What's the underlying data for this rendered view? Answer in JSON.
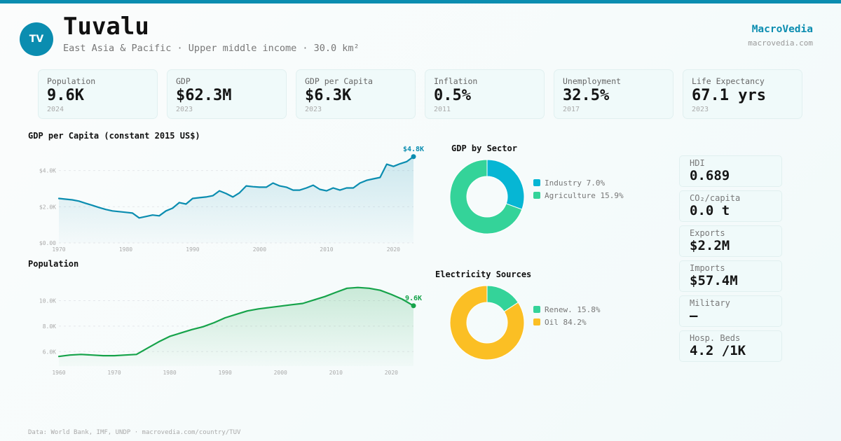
{
  "header": {
    "avatar_initials": "TV",
    "country": "Tuvalu",
    "subtitle": "East Asia & Pacific · Upper middle income · 30.0 km²",
    "brand": "MacroVedia",
    "brand_url": "macrovedia.com"
  },
  "colors": {
    "accent": "#0b8db0",
    "population_green": "#16a34a",
    "industry": "#06b6d4",
    "agriculture": "#34d399",
    "renewables": "#34d399",
    "oil": "#fbbf24"
  },
  "stats": [
    {
      "label": "Population",
      "value": "9.6K",
      "year": "2024"
    },
    {
      "label": "GDP",
      "value": "$62.3M",
      "year": "2023"
    },
    {
      "label": "GDP per Capita",
      "value": "$6.3K",
      "year": "2023"
    },
    {
      "label": "Inflation",
      "value": "0.5%",
      "year": "2011"
    },
    {
      "label": "Unemployment",
      "value": "32.5%",
      "year": "2017"
    },
    {
      "label": "Life Expectancy",
      "value": "67.1 yrs",
      "year": "2023"
    }
  ],
  "side_stats": [
    {
      "label": "HDI",
      "value": "0.689"
    },
    {
      "label": "CO₂/capita",
      "value": "0.0 t"
    },
    {
      "label": "Exports",
      "value": "$2.2M"
    },
    {
      "label": "Imports",
      "value": "$57.4M"
    },
    {
      "label": "Military",
      "value": "—"
    },
    {
      "label": "Hosp. Beds",
      "value": "4.2 /1K"
    }
  ],
  "footer": "Data: World Bank, IMF, UNDP · macrovedia.com/country/TUV",
  "chart_data": [
    {
      "type": "area",
      "title": "GDP per Capita (constant 2015 US$)",
      "xlabel": "",
      "ylabel": "",
      "ylim": [
        0,
        4800
      ],
      "yticks": [
        0,
        2000,
        4000
      ],
      "ytick_labels": [
        "$0.00",
        "$2.0K",
        "$4.0K"
      ],
      "xticks": [
        1970,
        1980,
        1990,
        2000,
        2010,
        2020
      ],
      "grid": true,
      "end_label": "$4.8K",
      "x": [
        1970,
        1971,
        1972,
        1973,
        1974,
        1975,
        1976,
        1977,
        1978,
        1979,
        1980,
        1981,
        1982,
        1983,
        1984,
        1985,
        1986,
        1987,
        1988,
        1989,
        1990,
        1991,
        1992,
        1993,
        1994,
        1995,
        1996,
        1997,
        1998,
        1999,
        2000,
        2001,
        2002,
        2003,
        2004,
        2005,
        2006,
        2007,
        2008,
        2009,
        2010,
        2011,
        2012,
        2013,
        2014,
        2015,
        2016,
        2017,
        2018,
        2019,
        2020,
        2021,
        2022,
        2023
      ],
      "values": [
        2460,
        2420,
        2380,
        2310,
        2190,
        2080,
        1960,
        1850,
        1770,
        1730,
        1690,
        1650,
        1380,
        1460,
        1540,
        1500,
        1770,
        1920,
        2230,
        2150,
        2460,
        2500,
        2540,
        2610,
        2880,
        2730,
        2540,
        2770,
        3150,
        3110,
        3080,
        3080,
        3310,
        3150,
        3080,
        2920,
        2920,
        3040,
        3190,
        2960,
        2880,
        3040,
        2920,
        3040,
        3040,
        3310,
        3460,
        3540,
        3620,
        4350,
        4230,
        4380,
        4500,
        4770
      ]
    },
    {
      "type": "area",
      "title": "Population",
      "xlabel": "",
      "ylabel": "",
      "ylim": [
        4860,
        11400
      ],
      "yticks": [
        6000,
        8000,
        10000
      ],
      "ytick_labels": [
        "6.0K",
        "8.0K",
        "10.0K"
      ],
      "xticks": [
        1960,
        1970,
        1980,
        1990,
        2000,
        2010,
        2020
      ],
      "grid": true,
      "end_label": "9.6K",
      "x": [
        1960,
        1962,
        1964,
        1966,
        1968,
        1970,
        1972,
        1974,
        1976,
        1978,
        1980,
        1982,
        1984,
        1986,
        1988,
        1990,
        1992,
        1994,
        1996,
        1998,
        2000,
        2002,
        2004,
        2006,
        2008,
        2010,
        2012,
        2014,
        2016,
        2018,
        2020,
        2022,
        2024
      ],
      "values": [
        5620,
        5730,
        5780,
        5730,
        5680,
        5680,
        5730,
        5780,
        6270,
        6760,
        7190,
        7460,
        7730,
        7950,
        8270,
        8650,
        8920,
        9190,
        9350,
        9460,
        9570,
        9680,
        9780,
        10050,
        10320,
        10650,
        10970,
        11030,
        10970,
        10810,
        10490,
        10110,
        9600
      ]
    },
    {
      "type": "pie",
      "title": "GDP by Sector",
      "legend": "right",
      "labels": [
        "Industry",
        "Agriculture"
      ],
      "values": [
        7.0,
        15.9
      ],
      "label_texts": [
        "Industry 7.0%",
        "Agriculture 15.9%"
      ]
    },
    {
      "type": "pie",
      "title": "Electricity Sources",
      "legend": "right",
      "labels": [
        "Renew.",
        "Oil"
      ],
      "values": [
        15.8,
        84.2
      ],
      "label_texts": [
        "Renew. 15.8%",
        "Oil 84.2%"
      ]
    }
  ]
}
